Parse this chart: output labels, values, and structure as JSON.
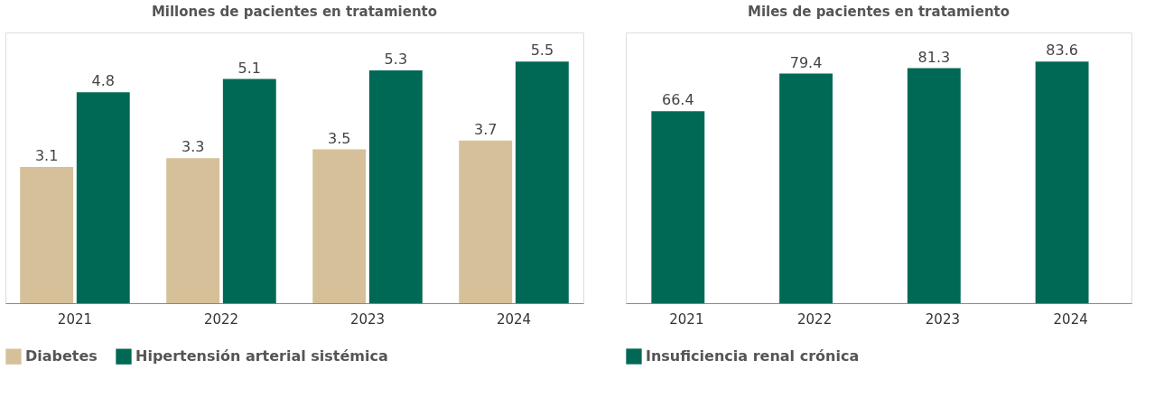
{
  "chart_data": [
    {
      "type": "bar",
      "title": "Millones de pacientes en tratamiento",
      "categories": [
        "2021",
        "2022",
        "2023",
        "2024"
      ],
      "series": [
        {
          "name": "Diabetes",
          "color": "#d5c09a",
          "values": [
            3.1,
            3.3,
            3.5,
            3.7
          ]
        },
        {
          "name": "Hipertensión arterial sistémica",
          "color": "#006955",
          "values": [
            4.8,
            5.1,
            5.3,
            5.5
          ]
        }
      ],
      "data_labels": true,
      "legend": "bottom",
      "tick_labels": "x"
    },
    {
      "type": "bar",
      "title": "Miles de pacientes en tratamiento",
      "categories": [
        "2021",
        "2022",
        "2023",
        "2024"
      ],
      "series": [
        {
          "name": "Insuficiencia renal crónica",
          "color": "#006955",
          "values": [
            66.4,
            79.4,
            81.3,
            83.6
          ]
        }
      ],
      "data_labels": true,
      "legend": "bottom",
      "tick_labels": "x"
    }
  ]
}
